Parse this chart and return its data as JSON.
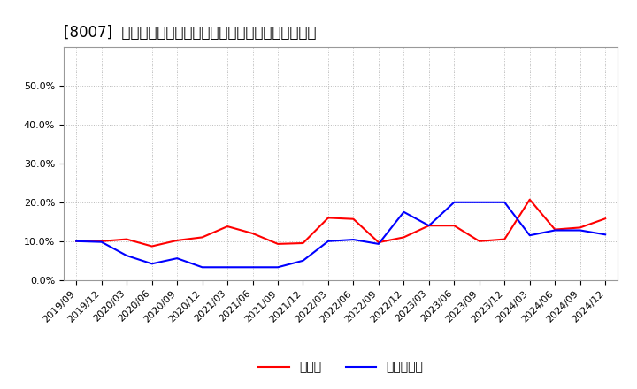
{
  "title": "[8007]  現頂金、有利子負債の総資産に対する比率の推移",
  "x_labels": [
    "2019/09",
    "2019/12",
    "2020/03",
    "2020/06",
    "2020/09",
    "2020/12",
    "2021/03",
    "2021/06",
    "2021/09",
    "2021/12",
    "2022/03",
    "2022/06",
    "2022/09",
    "2022/12",
    "2023/03",
    "2023/06",
    "2023/09",
    "2023/12",
    "2024/03",
    "2024/06",
    "2024/09",
    "2024/12"
  ],
  "cash_values": [
    0.1,
    0.1,
    0.105,
    0.087,
    0.102,
    0.11,
    0.138,
    0.12,
    0.093,
    0.095,
    0.16,
    0.157,
    0.097,
    0.11,
    0.14,
    0.14,
    0.1,
    0.105,
    0.207,
    0.13,
    0.135,
    0.158
  ],
  "debt_values": [
    0.1,
    0.098,
    0.063,
    0.042,
    0.056,
    0.033,
    0.033,
    0.033,
    0.033,
    0.05,
    0.1,
    0.104,
    0.093,
    0.175,
    0.14,
    0.2,
    0.2,
    0.2,
    0.115,
    0.128,
    0.128,
    0.117
  ],
  "cash_color": "#ff0000",
  "debt_color": "#0000ff",
  "background_color": "#ffffff",
  "grid_color": "#aaaaaa",
  "ylim": [
    0.0,
    0.6
  ],
  "yticks": [
    0.0,
    0.1,
    0.2,
    0.3,
    0.4,
    0.5
  ],
  "legend_cash": "現頂金",
  "legend_debt": "有利子負債",
  "title_fontsize": 12,
  "axis_fontsize": 8,
  "legend_fontsize": 10
}
